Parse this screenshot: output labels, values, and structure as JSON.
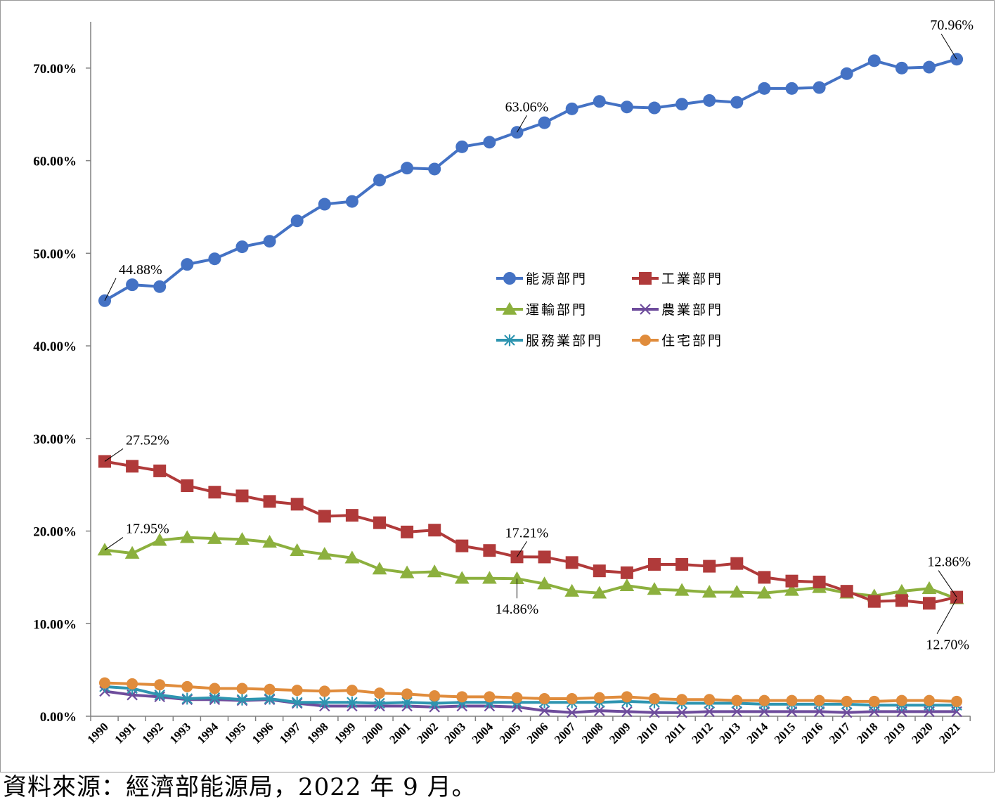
{
  "source_note": "資料來源：經濟部能源局，2022 年 9 月。",
  "chart_data": {
    "type": "line",
    "x": [
      "1990",
      "1991",
      "1992",
      "1993",
      "1994",
      "1995",
      "1996",
      "1997",
      "1998",
      "1999",
      "2000",
      "2001",
      "2002",
      "2003",
      "2004",
      "2005",
      "2006",
      "2007",
      "2008",
      "2009",
      "2010",
      "2011",
      "2012",
      "2013",
      "2014",
      "2015",
      "2016",
      "2017",
      "2018",
      "2019",
      "2020",
      "2021"
    ],
    "yticks": [
      "0.00%",
      "10.00%",
      "20.00%",
      "30.00%",
      "40.00%",
      "50.00%",
      "60.00%",
      "70.00%"
    ],
    "ylim": [
      0,
      75
    ],
    "legend_position": "center",
    "series": [
      {
        "name": "能源部門",
        "color": "#4472C4",
        "marker": "circle",
        "values": [
          44.88,
          46.6,
          46.4,
          48.8,
          49.4,
          50.7,
          51.3,
          53.5,
          55.3,
          55.6,
          57.9,
          59.2,
          59.1,
          61.5,
          62.0,
          63.06,
          64.1,
          65.6,
          66.4,
          65.8,
          65.7,
          66.1,
          66.5,
          66.3,
          67.8,
          67.8,
          67.9,
          69.4,
          70.8,
          70.0,
          70.1,
          70.96
        ]
      },
      {
        "name": "工業部門",
        "color": "#B03A3A",
        "marker": "square",
        "values": [
          27.52,
          27.0,
          26.5,
          24.9,
          24.2,
          23.8,
          23.2,
          22.9,
          21.6,
          21.7,
          20.9,
          19.9,
          20.1,
          18.4,
          17.9,
          17.21,
          17.2,
          16.6,
          15.7,
          15.5,
          16.4,
          16.4,
          16.2,
          16.5,
          15.0,
          14.6,
          14.5,
          13.5,
          12.4,
          12.5,
          12.2,
          12.86
        ]
      },
      {
        "name": "運輸部門",
        "color": "#8CB03E",
        "marker": "triangle",
        "values": [
          17.95,
          17.6,
          19.0,
          19.3,
          19.2,
          19.1,
          18.8,
          17.9,
          17.5,
          17.1,
          15.9,
          15.5,
          15.6,
          14.9,
          14.9,
          14.86,
          14.3,
          13.5,
          13.3,
          14.1,
          13.7,
          13.6,
          13.4,
          13.4,
          13.3,
          13.6,
          13.9,
          13.3,
          13.0,
          13.5,
          13.8,
          12.7
        ]
      },
      {
        "name": "農業部門",
        "color": "#6E4C9C",
        "marker": "x",
        "values": [
          2.7,
          2.3,
          2.1,
          1.8,
          1.8,
          1.7,
          1.8,
          1.4,
          1.1,
          1.1,
          1.1,
          1.1,
          1.0,
          1.1,
          1.1,
          1.0,
          0.6,
          0.4,
          0.6,
          0.5,
          0.4,
          0.4,
          0.5,
          0.5,
          0.5,
          0.5,
          0.5,
          0.4,
          0.5,
          0.5,
          0.5,
          0.5
        ]
      },
      {
        "name": "服務業部門",
        "color": "#2E95B0",
        "marker": "asterisk",
        "values": [
          3.2,
          3.0,
          2.3,
          1.9,
          2.0,
          1.8,
          1.9,
          1.5,
          1.5,
          1.5,
          1.4,
          1.5,
          1.4,
          1.5,
          1.5,
          1.5,
          1.5,
          1.5,
          1.5,
          1.6,
          1.5,
          1.4,
          1.4,
          1.4,
          1.3,
          1.3,
          1.3,
          1.3,
          1.2,
          1.2,
          1.2,
          1.2
        ]
      },
      {
        "name": "住宅部門",
        "color": "#E08C3C",
        "marker": "circle",
        "values": [
          3.6,
          3.5,
          3.4,
          3.2,
          3.0,
          3.0,
          2.9,
          2.8,
          2.7,
          2.8,
          2.5,
          2.4,
          2.2,
          2.1,
          2.1,
          2.0,
          1.9,
          1.9,
          2.0,
          2.1,
          1.9,
          1.8,
          1.8,
          1.7,
          1.7,
          1.7,
          1.7,
          1.6,
          1.6,
          1.7,
          1.7,
          1.6
        ]
      }
    ],
    "annotations": [
      {
        "text": "44.88%",
        "series": 0,
        "index": 0
      },
      {
        "text": "63.06%",
        "series": 0,
        "index": 15
      },
      {
        "text": "70.96%",
        "series": 0,
        "index": 31
      },
      {
        "text": "27.52%",
        "series": 1,
        "index": 0
      },
      {
        "text": "17.21%",
        "series": 1,
        "index": 15
      },
      {
        "text": "12.86%",
        "series": 1,
        "index": 31
      },
      {
        "text": "17.95%",
        "series": 2,
        "index": 0
      },
      {
        "text": "14.86%",
        "series": 2,
        "index": 15
      },
      {
        "text": "12.70%",
        "series": 2,
        "index": 31
      }
    ]
  }
}
